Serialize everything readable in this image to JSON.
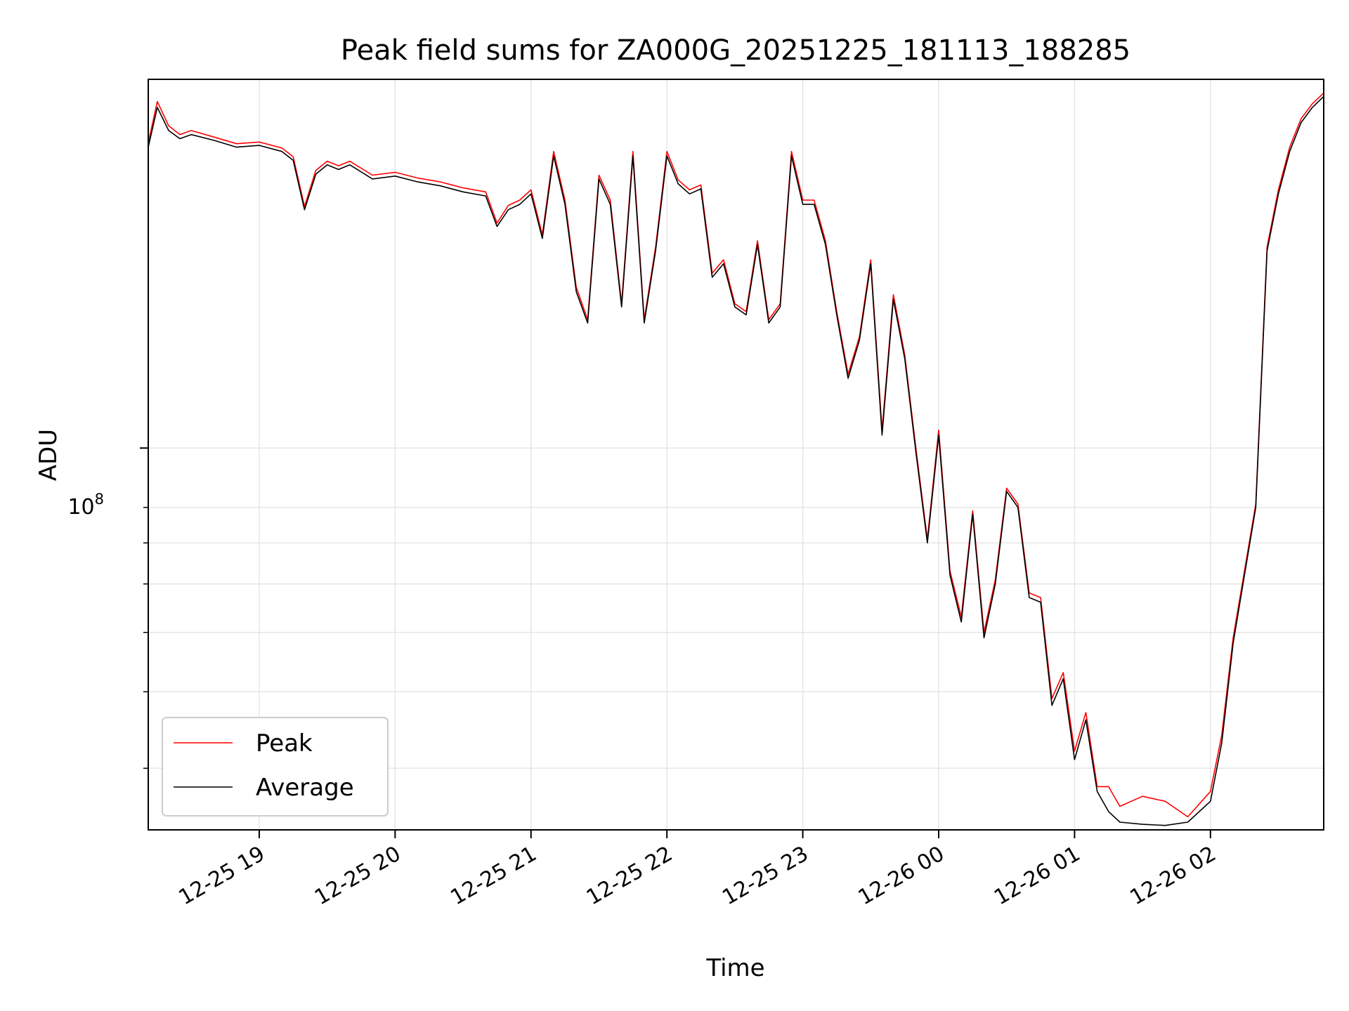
{
  "chart_data": {
    "type": "line",
    "title": "Peak field sums for ZA000G_20251225_181113_188285",
    "xlabel": "Time",
    "ylabel": "ADU",
    "y_scale": "log",
    "ylim": [
      23800000,
      400000000
    ],
    "xlim": [
      "2025-12-25 18:11",
      "2025-12-26 02:50"
    ],
    "x_ticks": [
      "12-25 19",
      "12-25 20",
      "12-25 21",
      "12-25 22",
      "12-25 23",
      "12-26 00",
      "12-26 01",
      "12-26 02"
    ],
    "y_major_tick_label": {
      "base": "10",
      "exponent": "8"
    },
    "y_minor_ticks": [
      30000000,
      40000000,
      50000000,
      60000000,
      70000000,
      80000000
    ],
    "grid": true,
    "legend_position": "lower-left",
    "colors": {
      "peak": "#ff0000",
      "average": "#000000",
      "grid": "#e6e6e6"
    },
    "legend": [
      "Peak",
      "Average"
    ],
    "series": [
      {
        "name": "Average",
        "x": [
          "2025-12-25 18:11",
          "2025-12-25 18:15",
          "2025-12-25 18:20",
          "2025-12-25 18:25",
          "2025-12-25 18:30",
          "2025-12-25 18:40",
          "2025-12-25 18:50",
          "2025-12-25 19:00",
          "2025-12-25 19:10",
          "2025-12-25 19:15",
          "2025-12-25 19:20",
          "2025-12-25 19:25",
          "2025-12-25 19:30",
          "2025-12-25 19:35",
          "2025-12-25 19:40",
          "2025-12-25 19:50",
          "2025-12-25 20:00",
          "2025-12-25 20:10",
          "2025-12-25 20:20",
          "2025-12-25 20:30",
          "2025-12-25 20:40",
          "2025-12-25 20:45",
          "2025-12-25 20:50",
          "2025-12-25 20:55",
          "2025-12-25 21:00",
          "2025-12-25 21:05",
          "2025-12-25 21:10",
          "2025-12-25 21:15",
          "2025-12-25 21:20",
          "2025-12-25 21:25",
          "2025-12-25 21:30",
          "2025-12-25 21:35",
          "2025-12-25 21:40",
          "2025-12-25 21:45",
          "2025-12-25 21:50",
          "2025-12-25 21:55",
          "2025-12-25 22:00",
          "2025-12-25 22:05",
          "2025-12-25 22:10",
          "2025-12-25 22:15",
          "2025-12-25 22:20",
          "2025-12-25 22:25",
          "2025-12-25 22:30",
          "2025-12-25 22:35",
          "2025-12-25 22:40",
          "2025-12-25 22:45",
          "2025-12-25 22:50",
          "2025-12-25 22:55",
          "2025-12-25 23:00",
          "2025-12-25 23:05",
          "2025-12-25 23:10",
          "2025-12-25 23:15",
          "2025-12-25 23:20",
          "2025-12-25 23:25",
          "2025-12-25 23:30",
          "2025-12-25 23:35",
          "2025-12-25 23:40",
          "2025-12-25 23:45",
          "2025-12-25 23:50",
          "2025-12-25 23:55",
          "2025-12-26 00:00",
          "2025-12-26 00:05",
          "2025-12-26 00:10",
          "2025-12-26 00:15",
          "2025-12-26 00:20",
          "2025-12-26 00:25",
          "2025-12-26 00:30",
          "2025-12-26 00:35",
          "2025-12-26 00:40",
          "2025-12-26 00:45",
          "2025-12-26 00:50",
          "2025-12-26 00:55",
          "2025-12-26 01:00",
          "2025-12-26 01:05",
          "2025-12-26 01:10",
          "2025-12-26 01:15",
          "2025-12-26 01:20",
          "2025-12-26 01:30",
          "2025-12-26 01:40",
          "2025-12-26 01:50",
          "2025-12-26 02:00",
          "2025-12-26 02:05",
          "2025-12-26 02:10",
          "2025-12-26 02:15",
          "2025-12-26 02:20",
          "2025-12-26 02:25",
          "2025-12-26 02:30",
          "2025-12-26 02:35",
          "2025-12-26 02:40",
          "2025-12-26 02:45",
          "2025-12-26 02:50"
        ],
        "values": [
          310,
          360,
          330,
          320,
          325,
          318,
          310,
          312,
          305,
          295,
          245,
          280,
          290,
          285,
          290,
          275,
          278,
          272,
          268,
          262,
          258,
          230,
          245,
          250,
          260,
          220,
          300,
          250,
          180,
          160,
          275,
          250,
          170,
          300,
          160,
          210,
          300,
          270,
          260,
          265,
          190,
          200,
          170,
          165,
          215,
          160,
          170,
          300,
          250,
          250,
          215,
          165,
          130,
          150,
          200,
          105,
          175,
          140,
          98,
          70,
          105,
          62,
          52,
          78,
          49,
          60,
          85,
          80,
          57,
          56,
          38,
          42,
          31,
          36,
          27.5,
          25.5,
          24.5,
          24.3,
          24.2,
          24.5,
          26.5,
          33,
          48,
          62,
          80,
          210,
          260,
          305,
          340,
          360,
          375
        ]
      },
      {
        "name": "Peak",
        "x": [
          "2025-12-25 18:11",
          "2025-12-25 18:15",
          "2025-12-25 18:20",
          "2025-12-25 18:25",
          "2025-12-25 18:30",
          "2025-12-25 18:40",
          "2025-12-25 18:50",
          "2025-12-25 19:00",
          "2025-12-25 19:10",
          "2025-12-25 19:15",
          "2025-12-25 19:20",
          "2025-12-25 19:25",
          "2025-12-25 19:30",
          "2025-12-25 19:35",
          "2025-12-25 19:40",
          "2025-12-25 19:50",
          "2025-12-25 20:00",
          "2025-12-25 20:10",
          "2025-12-25 20:20",
          "2025-12-25 20:30",
          "2025-12-25 20:40",
          "2025-12-25 20:45",
          "2025-12-25 20:50",
          "2025-12-25 20:55",
          "2025-12-25 21:00",
          "2025-12-25 21:05",
          "2025-12-25 21:10",
          "2025-12-25 21:15",
          "2025-12-25 21:20",
          "2025-12-25 21:25",
          "2025-12-25 21:30",
          "2025-12-25 21:35",
          "2025-12-25 21:40",
          "2025-12-25 21:45",
          "2025-12-25 21:50",
          "2025-12-25 21:55",
          "2025-12-25 22:00",
          "2025-12-25 22:05",
          "2025-12-25 22:10",
          "2025-12-25 22:15",
          "2025-12-25 22:20",
          "2025-12-25 22:25",
          "2025-12-25 22:30",
          "2025-12-25 22:35",
          "2025-12-25 22:40",
          "2025-12-25 22:45",
          "2025-12-25 22:50",
          "2025-12-25 22:55",
          "2025-12-25 23:00",
          "2025-12-25 23:05",
          "2025-12-25 23:10",
          "2025-12-25 23:15",
          "2025-12-25 23:20",
          "2025-12-25 23:25",
          "2025-12-25 23:30",
          "2025-12-25 23:35",
          "2025-12-25 23:40",
          "2025-12-25 23:45",
          "2025-12-25 23:50",
          "2025-12-25 23:55",
          "2025-12-26 00:00",
          "2025-12-26 00:05",
          "2025-12-26 00:10",
          "2025-12-26 00:15",
          "2025-12-26 00:20",
          "2025-12-26 00:25",
          "2025-12-26 00:30",
          "2025-12-26 00:35",
          "2025-12-26 00:40",
          "2025-12-26 00:45",
          "2025-12-26 00:50",
          "2025-12-26 00:55",
          "2025-12-26 01:00",
          "2025-12-26 01:05",
          "2025-12-26 01:10",
          "2025-12-26 01:15",
          "2025-12-26 01:20",
          "2025-12-26 01:30",
          "2025-12-26 01:40",
          "2025-12-26 01:50",
          "2025-12-26 02:00",
          "2025-12-26 02:05",
          "2025-12-26 02:10",
          "2025-12-26 02:15",
          "2025-12-26 02:20",
          "2025-12-26 02:25",
          "2025-12-26 02:30",
          "2025-12-26 02:35",
          "2025-12-26 02:40",
          "2025-12-26 02:45",
          "2025-12-26 02:50"
        ],
        "values": [
          315,
          368,
          336,
          325,
          330,
          322,
          314,
          316,
          309,
          299,
          248,
          284,
          294,
          289,
          294,
          279,
          282,
          276,
          272,
          266,
          262,
          233,
          249,
          254,
          264,
          223,
          305,
          254,
          183,
          162,
          279,
          254,
          172,
          305,
          162,
          213,
          305,
          274,
          264,
          269,
          193,
          203,
          172,
          167,
          218,
          162,
          172,
          305,
          254,
          254,
          218,
          167,
          132,
          152,
          203,
          107,
          178,
          142,
          99.5,
          71,
          107,
          63,
          53,
          79,
          50,
          61,
          86,
          81,
          58,
          57,
          39,
          43,
          32,
          37,
          28,
          28,
          26,
          27,
          26.5,
          25,
          27.5,
          34,
          49,
          63,
          81,
          213,
          264,
          310,
          345,
          365,
          380
        ]
      }
    ]
  }
}
